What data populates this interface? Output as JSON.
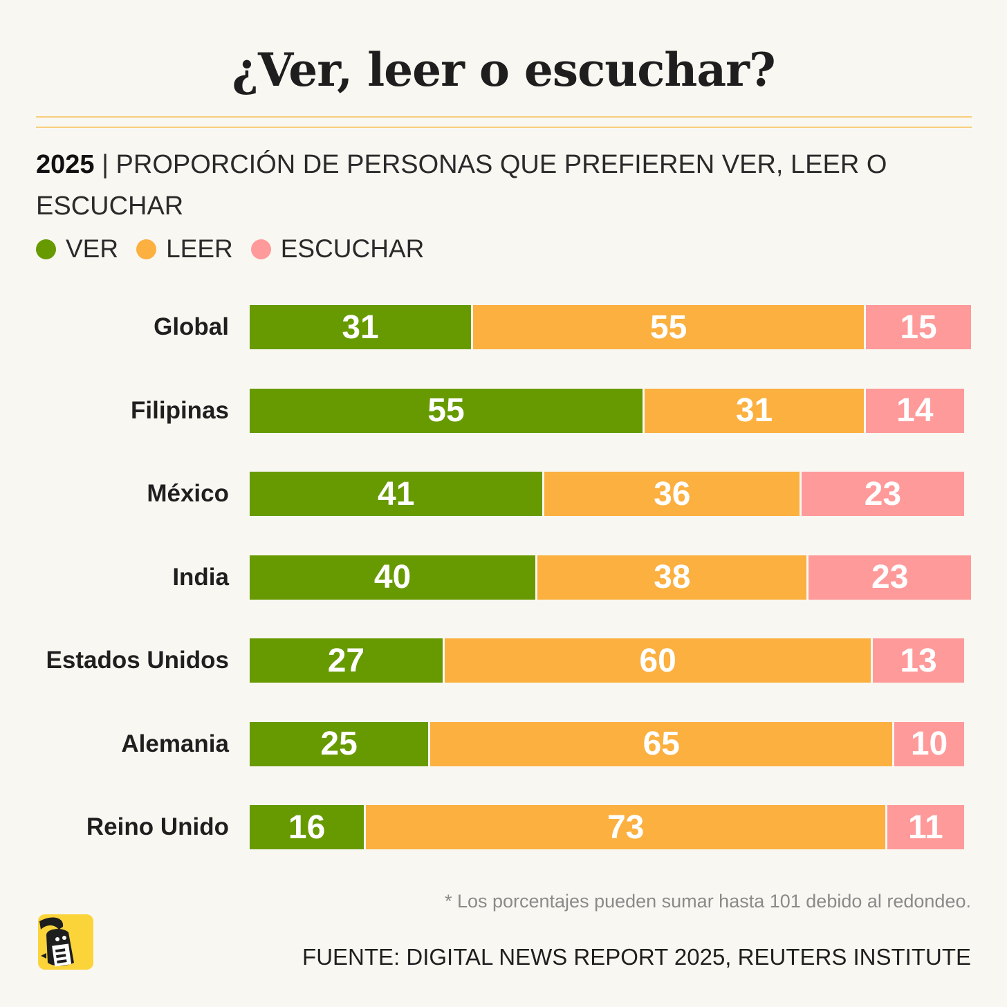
{
  "title": "¿Ver, leer o escuchar?",
  "subtitle": {
    "year": "2025",
    "text": " | PROPORCIÓN DE PERSONAS QUE PREFIEREN VER, LEER O ESCUCHAR"
  },
  "colors": {
    "ver": "#679a00",
    "leer": "#fbb040",
    "escuchar": "#ff9a9a",
    "rule": "#f7cf7b",
    "background": "#f9f7f2"
  },
  "footnote": "* Los porcentajes pueden sumar hasta 101 debido al redondeo.",
  "source": "FUENTE: DIGITAL NEWS REPORT 2025, REUTERS INSTITUTE",
  "logo_icon": "newspaper-mascot-icon",
  "chart_data": {
    "type": "bar",
    "orientation": "horizontal",
    "stacked": true,
    "categories": [
      "Global",
      "Filipinas",
      "México",
      "India",
      "Estados Unidos",
      "Alemania",
      "Reino Unido"
    ],
    "series": [
      {
        "name": "VER",
        "key": "ver",
        "values": [
          31,
          55,
          41,
          40,
          27,
          25,
          16
        ]
      },
      {
        "name": "LEER",
        "key": "leer",
        "values": [
          55,
          31,
          36,
          38,
          60,
          65,
          73
        ]
      },
      {
        "name": "ESCUCHAR",
        "key": "escuchar",
        "values": [
          15,
          14,
          23,
          23,
          13,
          10,
          11
        ]
      }
    ],
    "xlim": [
      0,
      101
    ],
    "legend_position": "top-left",
    "grid": false
  }
}
